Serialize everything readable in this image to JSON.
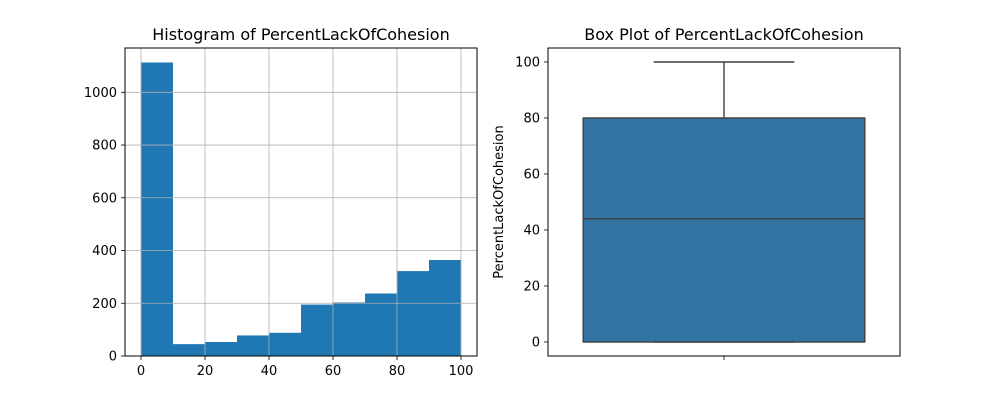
{
  "chart_data": [
    {
      "type": "bar",
      "subtype": "histogram",
      "title": "Histogram of PercentLackOfCohesion",
      "xlabel": "",
      "ylabel": "",
      "bins": [
        {
          "start": 0,
          "end": 10,
          "count": 1113
        },
        {
          "start": 10,
          "end": 20,
          "count": 45
        },
        {
          "start": 20,
          "end": 30,
          "count": 53
        },
        {
          "start": 30,
          "end": 40,
          "count": 78
        },
        {
          "start": 40,
          "end": 50,
          "count": 88
        },
        {
          "start": 50,
          "end": 60,
          "count": 195
        },
        {
          "start": 60,
          "end": 70,
          "count": 203
        },
        {
          "start": 70,
          "end": 80,
          "count": 237
        },
        {
          "start": 80,
          "end": 90,
          "count": 322
        },
        {
          "start": 90,
          "end": 100,
          "count": 364
        }
      ],
      "xlim": [
        -5,
        105
      ],
      "ylim": [
        0,
        1168
      ],
      "xticks": [
        0,
        20,
        40,
        60,
        80,
        100
      ],
      "yticks": [
        0,
        200,
        400,
        600,
        800,
        1000
      ],
      "grid": true,
      "bar_color": "#1f77b4"
    },
    {
      "type": "box",
      "title": "Box Plot of PercentLackOfCohesion",
      "xlabel": "",
      "ylabel": "PercentLackOfCohesion",
      "stats": {
        "min": 0,
        "q1": 0,
        "median": 44,
        "q3": 80,
        "max": 100
      },
      "ylim": [
        -5,
        105
      ],
      "yticks": [
        0,
        20,
        40,
        60,
        80,
        100
      ],
      "grid": false,
      "box_color": "#3274a1",
      "line_color": "#3f3f3f"
    }
  ]
}
